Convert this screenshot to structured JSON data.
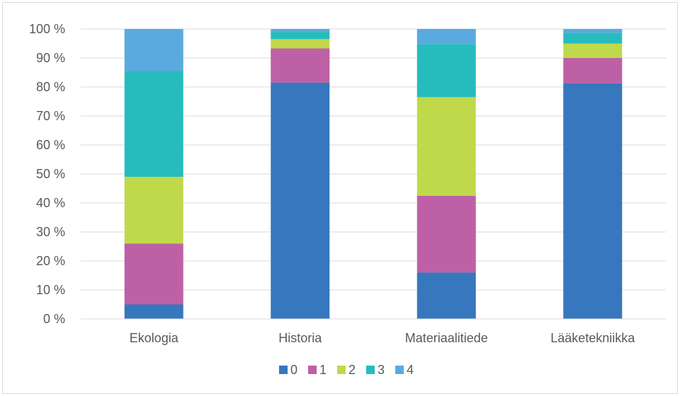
{
  "chart_data": {
    "type": "bar",
    "stacked": true,
    "percent_stacked": true,
    "title": "",
    "xlabel": "",
    "ylabel": "",
    "ylim": [
      0,
      100
    ],
    "y_ticks": [
      "0 %",
      "10 %",
      "20 %",
      "30 %",
      "40 %",
      "50 %",
      "60 %",
      "70 %",
      "80 %",
      "90 %",
      "100 %"
    ],
    "grid": true,
    "legend_position": "bottom",
    "categories": [
      "Ekologia",
      "Historia",
      "Materiaalitiede",
      "Lääketekniikka"
    ],
    "series": [
      {
        "name": "0",
        "color": "#3777bd",
        "values": [
          5,
          81.5,
          16,
          81.3
        ]
      },
      {
        "name": "1",
        "color": "#be60a6",
        "values": [
          21,
          11.8,
          26.5,
          8.7
        ]
      },
      {
        "name": "2",
        "color": "#c0d94a",
        "values": [
          23,
          3.2,
          34,
          5
        ]
      },
      {
        "name": "3",
        "color": "#26bcbd",
        "values": [
          36.5,
          2.5,
          18.3,
          3.7
        ]
      },
      {
        "name": "4",
        "color": "#5aaadf",
        "values": [
          14.5,
          1,
          5.2,
          1.3
        ]
      }
    ]
  }
}
